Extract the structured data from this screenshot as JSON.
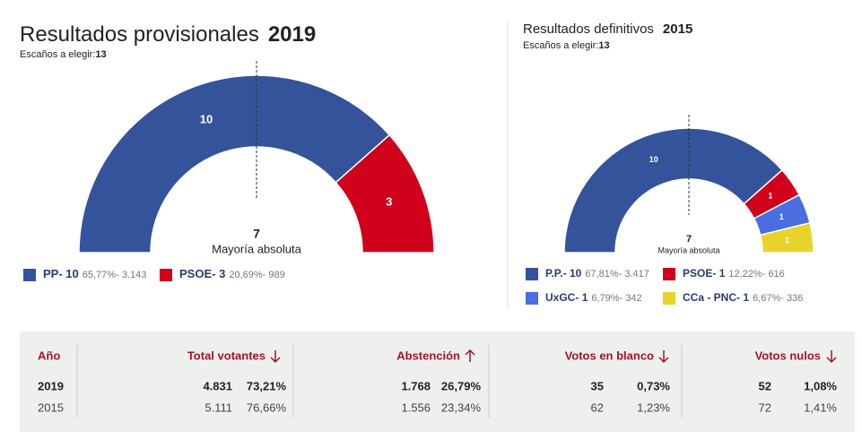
{
  "chart_data": [
    {
      "type": "semicircle",
      "title": "Resultados provisionales",
      "year": "2019",
      "subtitle": "Escaños a elegir:",
      "seats": 13,
      "majority": 7,
      "majority_label": "Mayoría absoluta",
      "legend_separator": "- ",
      "series": [
        {
          "name": "PP",
          "color": "#34539a",
          "values": [
            10
          ],
          "percent": 65.77,
          "percent_label": "65,77%",
          "votes": 3143,
          "votes_label": "3.143"
        },
        {
          "name": "PSOE",
          "color": "#d0021b",
          "values": [
            3
          ],
          "percent": 20.69,
          "percent_label": "20,69%",
          "votes": 989
        }
      ]
    },
    {
      "type": "semicircle",
      "title": "Resultados definitivos",
      "year": "2015",
      "subtitle": "Escaños a elegir:",
      "seats": 13,
      "majority": 7,
      "majority_label": "Mayoría absoluta",
      "legend_separator": "- ",
      "series": [
        {
          "name": "P.P.",
          "color": "#34539a",
          "values": [
            10
          ],
          "percent": 67.81,
          "percent_label": "67,81%",
          "votes": 3417,
          "votes_label": "3.417"
        },
        {
          "name": "PSOE",
          "color": "#d0021b",
          "values": [
            1
          ],
          "percent": 12.22,
          "percent_label": "12,22%",
          "votes": 616
        },
        {
          "name": "UxGC",
          "color": "#4a6ee0",
          "values": [
            1
          ],
          "percent": 6.79,
          "percent_label": "6,79%",
          "votes": 342
        },
        {
          "name": "CCa - PNC",
          "color": "#e8d32b",
          "values": [
            1
          ],
          "percent": 6.67,
          "percent_label": "6,67%",
          "votes": 336
        }
      ]
    }
  ],
  "table": {
    "header": [
      "Año",
      "Total votantes",
      "Abstención",
      "Votos en blanco",
      "Votos nulos"
    ],
    "rows": [
      [
        "2019",
        "4.831",
        "73,21%",
        "1.768",
        "26,79%",
        "35",
        "0,73%",
        "52",
        "1,08%"
      ],
      [
        "2015",
        "5.111",
        "76,66%",
        "1.556",
        "23,34%",
        "62",
        "1,23%",
        "72",
        "1,41%"
      ]
    ]
  }
}
